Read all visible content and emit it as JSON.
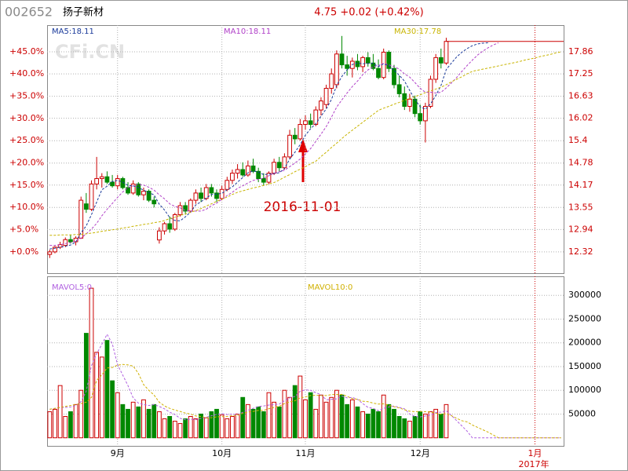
{
  "chart_data": {
    "type": "candlestick",
    "code": "002652",
    "title": "扬子新材",
    "subtitle": "4.75 +0.02 (+0.42%)",
    "watermark": "CFi.CN",
    "annotation": "2016-11-01",
    "x_year_label": "2017年",
    "up_color": "#cc0000",
    "down_color": "#008800",
    "grid": true,
    "categories": [
      null,
      null,
      null,
      null,
      null,
      null,
      null,
      null,
      null,
      null,
      null,
      null,
      null,
      "9月",
      null,
      null,
      null,
      null,
      null,
      null,
      null,
      null,
      null,
      null,
      null,
      null,
      null,
      null,
      null,
      null,
      null,
      null,
      null,
      "10月",
      null,
      null,
      null,
      null,
      null,
      null,
      null,
      null,
      null,
      null,
      null,
      null,
      null,
      null,
      null,
      "11月",
      null,
      null,
      null,
      null,
      null,
      null,
      null,
      null,
      null,
      null,
      null,
      null,
      null,
      null,
      null,
      null,
      null,
      null,
      null,
      null,
      null,
      "12月",
      null,
      null,
      null,
      null,
      null,
      null,
      null,
      null,
      null,
      null,
      null,
      null,
      null,
      null,
      null,
      null,
      null,
      null,
      null,
      null,
      null,
      "1月",
      null,
      null,
      null,
      null,
      null
    ],
    "open": [
      12.25,
      12.32,
      12.45,
      12.5,
      12.66,
      12.6,
      12.7,
      13.65,
      13.5,
      14.2,
      14.35,
      14.4,
      14.25,
      14.15,
      14.35,
      14.1,
      13.95,
      14.2,
      13.9,
      14.0,
      13.75,
      12.65,
      12.9,
      13.1,
      12.95,
      13.35,
      13.6,
      13.45,
      13.75,
      13.95,
      13.8,
      14.1,
      13.95,
      13.8,
      14.05,
      14.3,
      14.5,
      14.6,
      14.45,
      14.7,
      14.55,
      14.35,
      14.25,
      14.5,
      14.8,
      14.65,
      14.95,
      15.55,
      15.45,
      15.85,
      15.95,
      15.85,
      16.25,
      16.4,
      16.85,
      16.95,
      17.8,
      17.5,
      17.4,
      17.6,
      17.45,
      17.7,
      17.55,
      17.4,
      17.15,
      17.85,
      17.4,
      16.95,
      16.7,
      16.35,
      16.55,
      16.15,
      15.95,
      16.35,
      17.1,
      17.7,
      17.55,
      null,
      null,
      null,
      null,
      null,
      null,
      null,
      null,
      null,
      null,
      null,
      null,
      null,
      null,
      null,
      null,
      null,
      null,
      null,
      null,
      null,
      null
    ],
    "high": [
      12.38,
      12.48,
      12.6,
      12.72,
      12.8,
      12.75,
      13.85,
      13.95,
      14.3,
      14.95,
      14.5,
      14.55,
      14.45,
      14.45,
      14.4,
      14.25,
      14.3,
      14.25,
      14.1,
      14.05,
      13.85,
      13.0,
      13.15,
      13.3,
      13.4,
      13.7,
      13.7,
      13.8,
      14.05,
      14.1,
      14.2,
      14.2,
      14.05,
      14.15,
      14.4,
      14.6,
      14.75,
      14.8,
      14.85,
      14.9,
      14.65,
      14.5,
      14.55,
      14.9,
      14.95,
      15.05,
      15.7,
      15.75,
      16.0,
      16.1,
      16.15,
      16.35,
      16.6,
      16.95,
      17.4,
      17.9,
      18.3,
      17.75,
      17.7,
      17.8,
      17.75,
      17.85,
      17.8,
      17.65,
      17.95,
      17.9,
      17.5,
      17.2,
      16.9,
      16.7,
      16.65,
      16.4,
      16.45,
      17.2,
      17.8,
      17.95,
      18.25,
      null,
      null,
      null,
      null,
      null,
      null,
      null,
      null,
      null,
      null,
      null,
      null,
      null,
      null,
      null,
      null,
      null,
      null,
      null,
      null,
      null,
      null
    ],
    "low": [
      12.15,
      12.28,
      12.4,
      12.45,
      12.55,
      12.5,
      12.68,
      13.4,
      13.45,
      14.05,
      14.1,
      14.2,
      14.1,
      14.05,
      14.05,
      13.9,
      13.9,
      13.85,
      13.75,
      13.7,
      13.55,
      12.55,
      12.8,
      12.85,
      12.9,
      13.3,
      13.35,
      13.4,
      13.65,
      13.7,
      13.75,
      13.85,
      13.7,
      13.75,
      14.0,
      14.2,
      14.35,
      14.4,
      14.4,
      14.5,
      14.25,
      14.15,
      14.2,
      14.45,
      14.55,
      14.6,
      14.9,
      15.3,
      15.4,
      15.7,
      15.75,
      15.8,
      16.1,
      16.3,
      16.7,
      16.85,
      17.4,
      17.2,
      17.15,
      17.35,
      17.3,
      17.45,
      17.35,
      17.1,
      17.1,
      17.3,
      16.85,
      16.6,
      16.25,
      16.2,
      16.05,
      15.85,
      15.35,
      16.3,
      17.0,
      17.4,
      17.5,
      null,
      null,
      null,
      null,
      null,
      null,
      null,
      null,
      null,
      null,
      null,
      null,
      null,
      null,
      null,
      null,
      null,
      null,
      null,
      null,
      null,
      null
    ],
    "close": [
      12.32,
      12.45,
      12.52,
      12.66,
      12.6,
      12.7,
      13.75,
      13.5,
      14.2,
      14.35,
      14.4,
      14.25,
      14.15,
      14.35,
      14.1,
      13.95,
      14.2,
      13.9,
      14.0,
      13.75,
      13.65,
      12.9,
      13.1,
      12.95,
      13.35,
      13.6,
      13.45,
      13.75,
      13.95,
      13.8,
      14.1,
      13.95,
      13.8,
      14.05,
      14.3,
      14.5,
      14.6,
      14.45,
      14.7,
      14.55,
      14.35,
      14.25,
      14.5,
      14.8,
      14.65,
      14.95,
      15.55,
      15.45,
      15.85,
      15.95,
      15.85,
      16.25,
      16.5,
      16.85,
      17.25,
      17.8,
      17.5,
      17.4,
      17.6,
      17.45,
      17.7,
      17.55,
      17.4,
      17.15,
      17.85,
      17.4,
      16.95,
      16.7,
      16.35,
      16.55,
      16.15,
      15.95,
      16.35,
      17.1,
      17.7,
      17.55,
      18.15,
      null,
      null,
      null,
      null,
      null,
      null,
      null,
      null,
      null,
      null,
      null,
      null,
      null,
      null,
      null,
      null,
      null,
      null,
      null,
      null,
      null,
      null
    ],
    "series": [
      {
        "name": "MA5:18.11",
        "color": "#1a3a9a",
        "values": [
          12.4,
          12.42,
          12.45,
          12.48,
          12.51,
          12.59,
          12.85,
          13.04,
          13.35,
          13.7,
          14.04,
          14.14,
          14.27,
          14.3,
          14.25,
          14.16,
          14.15,
          14.1,
          14.03,
          13.96,
          13.9,
          13.64,
          13.48,
          13.27,
          13.19,
          13.18,
          13.29,
          13.42,
          13.62,
          13.71,
          13.81,
          13.91,
          13.92,
          13.94,
          14.04,
          14.12,
          14.25,
          14.38,
          14.51,
          14.56,
          14.53,
          14.46,
          14.47,
          14.49,
          14.51,
          14.63,
          14.89,
          15.08,
          15.29,
          15.55,
          15.73,
          15.87,
          16.08,
          16.28,
          16.54,
          16.93,
          17.18,
          17.36,
          17.51,
          17.55,
          17.53,
          17.54,
          17.54,
          17.45,
          17.53,
          17.47,
          17.35,
          17.21,
          17.05,
          16.79,
          16.54,
          16.34,
          16.27,
          16.42,
          16.65,
          16.93,
          17.37,
          17.55,
          17.72,
          17.85,
          17.95,
          18.03,
          18.08,
          18.1,
          18.11,
          null,
          null,
          null,
          null,
          null,
          null,
          null,
          null,
          null,
          null,
          null,
          null,
          null,
          null
        ]
      },
      {
        "name": "MA10:18.11",
        "color": "#b040c8",
        "values": [
          12.5,
          12.5,
          12.52,
          12.55,
          12.58,
          12.62,
          12.7,
          12.82,
          12.95,
          13.11,
          13.32,
          13.5,
          13.66,
          13.83,
          13.98,
          14.1,
          14.15,
          14.19,
          14.17,
          14.11,
          14.03,
          13.9,
          13.79,
          13.65,
          13.58,
          13.54,
          13.47,
          13.45,
          13.45,
          13.45,
          13.5,
          13.6,
          13.67,
          13.78,
          13.88,
          13.97,
          14.08,
          14.15,
          14.23,
          14.3,
          14.33,
          14.36,
          14.43,
          14.5,
          14.54,
          14.58,
          14.68,
          14.78,
          14.89,
          15.03,
          15.18,
          15.38,
          15.58,
          15.79,
          16.05,
          16.33,
          16.53,
          16.72,
          16.9,
          17.05,
          17.23,
          17.36,
          17.45,
          17.48,
          17.54,
          17.5,
          17.45,
          17.38,
          17.25,
          17.16,
          17.01,
          16.85,
          16.74,
          16.74,
          16.72,
          16.74,
          16.86,
          17.0,
          17.15,
          17.32,
          17.48,
          17.63,
          17.77,
          17.88,
          17.97,
          18.05,
          18.11,
          null,
          null,
          null,
          null,
          null,
          null,
          null,
          null,
          null,
          null,
          null,
          null
        ]
      },
      {
        "name": "MA30:17.78",
        "color": "#c8b400",
        "values": [
          12.78,
          12.78,
          12.79,
          12.79,
          12.79,
          12.8,
          12.8,
          12.82,
          12.84,
          12.86,
          12.89,
          12.91,
          12.93,
          12.95,
          12.98,
          13.0,
          13.03,
          13.05,
          13.08,
          13.1,
          13.13,
          13.15,
          13.19,
          13.24,
          13.28,
          13.33,
          13.37,
          13.42,
          13.46,
          13.52,
          13.59,
          13.65,
          13.72,
          13.78,
          13.84,
          13.91,
          13.97,
          14.01,
          14.05,
          14.09,
          14.12,
          14.16,
          14.2,
          14.24,
          14.31,
          14.39,
          14.46,
          14.54,
          14.61,
          14.68,
          14.76,
          14.83,
          14.96,
          15.08,
          15.21,
          15.33,
          15.46,
          15.58,
          15.69,
          15.8,
          15.91,
          16.02,
          16.13,
          16.24,
          16.3,
          16.35,
          16.41,
          16.46,
          16.52,
          16.57,
          16.62,
          16.67,
          16.73,
          16.78,
          16.83,
          16.88,
          16.95,
          17.03,
          17.1,
          17.17,
          17.25,
          17.32,
          17.35,
          17.38,
          17.41,
          17.44,
          17.47,
          17.5,
          17.53,
          17.56,
          17.59,
          17.63,
          17.66,
          17.69,
          17.73,
          17.76,
          17.79,
          17.83,
          17.86
        ]
      }
    ],
    "ylim": [
      11.73,
      18.6
    ],
    "yticks": [
      12.32,
      12.94,
      13.55,
      14.17,
      14.78,
      15.4,
      16.02,
      16.63,
      17.25,
      17.86
    ],
    "y2lim": [
      -4.79,
      50.97
    ],
    "y2ticks": [
      {
        "value": 0,
        "label": "+0.0%"
      },
      {
        "value": 5,
        "label": "+5.0%"
      },
      {
        "value": 10,
        "label": "+10.0%"
      },
      {
        "value": 15,
        "label": "+15.0%"
      },
      {
        "value": 20,
        "label": "+20.0%"
      },
      {
        "value": 25,
        "label": "+25.0%"
      },
      {
        "value": 30,
        "label": "+30.0%"
      },
      {
        "value": 35,
        "label": "+35.0%"
      },
      {
        "value": 40,
        "label": "+40.0%"
      },
      {
        "value": 45,
        "label": "+45.0%"
      }
    ],
    "volume": {
      "values": [
        55000,
        60000,
        110000,
        45000,
        55000,
        70000,
        100000,
        220000,
        315000,
        180000,
        170000,
        205000,
        120000,
        95000,
        70000,
        60000,
        75000,
        65000,
        80000,
        60000,
        70000,
        55000,
        40000,
        45000,
        35000,
        30000,
        40000,
        45000,
        40000,
        50000,
        42000,
        55000,
        60000,
        48000,
        40000,
        45000,
        50000,
        85000,
        70000,
        60000,
        65000,
        55000,
        95000,
        75000,
        65000,
        100000,
        85000,
        110000,
        130000,
        80000,
        95000,
        60000,
        90000,
        75000,
        85000,
        100000,
        90000,
        70000,
        80000,
        65000,
        55000,
        50000,
        60000,
        55000,
        90000,
        70000,
        60000,
        45000,
        40000,
        35000,
        45000,
        55000,
        50000,
        55000,
        60000,
        50000,
        70000,
        null,
        null,
        null,
        null,
        null,
        null,
        null,
        null,
        null,
        null,
        null,
        null,
        null,
        null,
        null,
        null,
        null,
        null,
        null,
        null,
        null,
        null
      ],
      "series": [
        {
          "name": "MAVOL5:0",
          "color": "#b060e0",
          "values": [
            60000,
            62000,
            64000,
            64000,
            65000,
            68000,
            76000,
            98000,
            152000,
            177000,
            197000,
            218000,
            198000,
            154000,
            132000,
            110000,
            84000,
            73000,
            70000,
            68000,
            70000,
            66000,
            61000,
            54000,
            49000,
            41000,
            38000,
            39000,
            38000,
            41000,
            43400,
            46400,
            49400,
            51000,
            49000,
            49600,
            48600,
            53600,
            58000,
            62000,
            66000,
            67000,
            69000,
            70000,
            71000,
            78000,
            84000,
            87000,
            98000,
            101000,
            100000,
            95000,
            91000,
            80000,
            81000,
            82000,
            88000,
            84000,
            85000,
            81000,
            72000,
            64000,
            62000,
            57000,
            62000,
            65000,
            67000,
            64000,
            61000,
            50000,
            45000,
            44000,
            46000,
            48000,
            53000,
            54000,
            57000,
            47000,
            36000,
            25000,
            14000,
            0,
            0,
            0,
            0,
            0,
            0,
            0,
            0,
            0,
            0,
            0,
            0,
            0,
            0,
            0,
            0,
            0,
            0
          ]
        },
        {
          "name": "MAVOL10:0",
          "color": "#d0b000",
          "values": [
            60000,
            62000,
            64000,
            66000,
            68000,
            70000,
            72000,
            75000,
            85000,
            121000,
            132500,
            147000,
            148000,
            153000,
            154500,
            153500,
            151000,
            135500,
            112000,
            100000,
            90000,
            75000,
            67000,
            62000,
            58500,
            55500,
            52000,
            50000,
            46000,
            45000,
            42200,
            42200,
            44200,
            44500,
            45000,
            46500,
            47500,
            51500,
            54500,
            55500,
            57800,
            57800,
            61300,
            64000,
            66500,
            72000,
            75500,
            78000,
            84000,
            86000,
            89000,
            89500,
            89000,
            89000,
            91000,
            91000,
            91500,
            87500,
            82500,
            81000,
            77000,
            76000,
            73000,
            71000,
            71500,
            68500,
            65500,
            63000,
            59000,
            56000,
            55000,
            55500,
            55000,
            54500,
            51500,
            49500,
            50500,
            46500,
            41000,
            36000,
            33500,
            27000,
            22000,
            17000,
            12000,
            6000,
            0,
            0,
            0,
            0,
            0,
            0,
            0,
            0,
            0,
            0,
            0,
            0,
            0
          ]
        }
      ],
      "ylim": [
        -17000,
        340000
      ],
      "yticks": [
        50000,
        100000,
        150000,
        200000,
        250000,
        300000
      ]
    }
  }
}
